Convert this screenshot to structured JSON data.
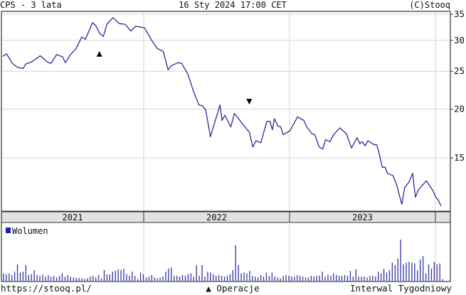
{
  "header": {
    "title": "CPS - 3 lata",
    "timestamp": "16 Sty 2024 17:00 CET",
    "copyright": "(C)Stooq"
  },
  "footer": {
    "url": "https://stooq.pl/",
    "operations_label": "▲ Operacje",
    "interval": "Interwal Tygodniowy"
  },
  "colors": {
    "price_line": "#2b2b96",
    "volume": "#3434a8",
    "grid": "#d6d6d6",
    "band": "#e2e2e2",
    "frame": "#333333"
  },
  "chart_data": [
    {
      "type": "line",
      "title": "CPS - 3 lata",
      "y_scale": "log",
      "ylim": [
        11,
        35.6
      ],
      "y_ticks": [
        15,
        20,
        25,
        30,
        35
      ],
      "x_range": [
        "2021-01-08",
        "2024-01-16"
      ],
      "x_tick_labels": [
        "2021",
        "2022",
        "2023"
      ],
      "grid": true,
      "series": [
        {
          "points": [
            [
              "2021-01-13",
              27.3
            ],
            [
              "2021-01-23",
              27.7
            ],
            [
              "2021-02-06",
              26.2
            ],
            [
              "2021-02-19",
              25.6
            ],
            [
              "2021-03-05",
              25.4
            ],
            [
              "2021-03-12",
              26.1
            ],
            [
              "2021-03-26",
              26.4
            ],
            [
              "2021-04-17",
              27.4
            ],
            [
              "2021-05-05",
              26.4
            ],
            [
              "2021-05-14",
              26.2
            ],
            [
              "2021-05-28",
              27.6
            ],
            [
              "2021-06-12",
              27.2
            ],
            [
              "2021-06-19",
              26.3
            ],
            [
              "2021-07-02",
              27.6
            ],
            [
              "2021-07-16",
              28.6
            ],
            [
              "2021-07-30",
              30.6
            ],
            [
              "2021-08-08",
              30.2
            ],
            [
              "2021-08-26",
              33.3
            ],
            [
              "2021-09-04",
              32.6
            ],
            [
              "2021-09-12",
              31.3
            ],
            [
              "2021-09-22",
              30.7
            ],
            [
              "2021-10-01",
              33.0
            ],
            [
              "2021-10-16",
              34.3
            ],
            [
              "2021-11-01",
              33.1
            ],
            [
              "2021-11-15",
              33.0
            ],
            [
              "2021-11-30",
              31.7
            ],
            [
              "2021-12-12",
              32.6
            ],
            [
              "2022-01-03",
              32.3
            ],
            [
              "2022-01-21",
              30.0
            ],
            [
              "2022-02-04",
              28.6
            ],
            [
              "2022-02-19",
              28.1
            ],
            [
              "2022-03-03",
              25.2
            ],
            [
              "2022-03-10",
              25.8
            ],
            [
              "2022-03-28",
              26.3
            ],
            [
              "2022-04-06",
              26.2
            ],
            [
              "2022-04-22",
              24.5
            ],
            [
              "2022-05-05",
              22.3
            ],
            [
              "2022-05-19",
              20.5
            ],
            [
              "2022-05-28",
              20.4
            ],
            [
              "2022-06-05",
              19.9
            ],
            [
              "2022-06-17",
              17.0
            ],
            [
              "2022-07-11",
              20.5
            ],
            [
              "2022-07-16",
              18.7
            ],
            [
              "2022-07-23",
              19.3
            ],
            [
              "2022-08-07",
              18.0
            ],
            [
              "2022-08-16",
              19.5
            ],
            [
              "2022-08-28",
              18.8
            ],
            [
              "2022-09-17",
              17.7
            ],
            [
              "2022-09-22",
              17.5
            ],
            [
              "2022-10-01",
              16.0
            ],
            [
              "2022-10-09",
              16.6
            ],
            [
              "2022-10-21",
              16.4
            ],
            [
              "2022-11-05",
              18.6
            ],
            [
              "2022-11-13",
              18.6
            ],
            [
              "2022-11-19",
              17.7
            ],
            [
              "2022-11-24",
              18.9
            ],
            [
              "2022-12-03",
              18.1
            ],
            [
              "2022-12-10",
              18.0
            ],
            [
              "2022-12-16",
              17.2
            ],
            [
              "2023-01-02",
              17.6
            ],
            [
              "2023-01-21",
              19.1
            ],
            [
              "2023-02-06",
              18.7
            ],
            [
              "2023-02-13",
              18.0
            ],
            [
              "2023-02-26",
              17.3
            ],
            [
              "2023-03-05",
              17.2
            ],
            [
              "2023-03-16",
              16.0
            ],
            [
              "2023-03-25",
              15.8
            ],
            [
              "2023-04-01",
              16.7
            ],
            [
              "2023-04-12",
              16.5
            ],
            [
              "2023-04-21",
              17.2
            ],
            [
              "2023-05-07",
              17.9
            ],
            [
              "2023-05-23",
              17.3
            ],
            [
              "2023-06-05",
              15.9
            ],
            [
              "2023-06-19",
              16.9
            ],
            [
              "2023-06-26",
              16.3
            ],
            [
              "2023-07-02",
              16.5
            ],
            [
              "2023-07-09",
              16.1
            ],
            [
              "2023-07-16",
              16.6
            ],
            [
              "2023-08-01",
              16.2
            ],
            [
              "2023-08-07",
              16.2
            ],
            [
              "2023-08-12",
              15.6
            ],
            [
              "2023-08-21",
              14.2
            ],
            [
              "2023-08-28",
              14.2
            ],
            [
              "2023-09-03",
              13.7
            ],
            [
              "2023-09-17",
              13.5
            ],
            [
              "2023-09-26",
              12.8
            ],
            [
              "2023-10-03",
              12.0
            ],
            [
              "2023-10-09",
              11.4
            ],
            [
              "2023-10-16",
              12.6
            ],
            [
              "2023-10-27",
              13.0
            ],
            [
              "2023-11-05",
              13.7
            ],
            [
              "2023-11-12",
              11.9
            ],
            [
              "2023-11-19",
              12.4
            ],
            [
              "2023-12-09",
              13.1
            ],
            [
              "2023-12-25",
              12.4
            ],
            [
              "2024-01-02",
              11.9
            ],
            [
              "2024-01-08",
              11.7
            ],
            [
              "2024-01-15",
              11.3
            ]
          ]
        }
      ],
      "operations": [
        {
          "type": "buy",
          "symbol": "▲",
          "date": "2021-09-12",
          "level": 27.7
        },
        {
          "type": "sell",
          "symbol": "▼",
          "date": "2022-09-22",
          "level": 20.9
        }
      ]
    },
    {
      "type": "bar",
      "legend": "Wolumen",
      "legend_placement": "top-left",
      "y_units": "relative (max = 100)",
      "start_date": "2021-01-15",
      "interval": "weekly",
      "values": [
        18,
        16,
        18,
        14,
        22,
        40,
        20,
        22,
        38,
        14,
        16,
        26,
        14,
        12,
        15,
        10,
        14,
        10,
        12,
        8,
        12,
        18,
        10,
        14,
        10,
        8,
        7,
        7,
        6,
        5,
        6,
        10,
        12,
        8,
        14,
        6,
        26,
        16,
        15,
        22,
        24,
        28,
        26,
        29,
        16,
        12,
        22,
        12,
        4,
        20,
        16,
        8,
        10,
        14,
        8,
        6,
        8,
        10,
        22,
        30,
        32,
        12,
        12,
        10,
        14,
        12,
        16,
        18,
        10,
        38,
        12,
        38,
        10,
        22,
        20,
        16,
        12,
        14,
        12,
        10,
        12,
        16,
        26,
        86,
        38,
        18,
        20,
        18,
        24,
        12,
        10,
        8,
        14,
        10,
        20,
        12,
        20,
        10,
        8,
        6,
        12,
        14,
        12,
        10,
        10,
        14,
        12,
        10,
        8,
        8,
        12,
        10,
        12,
        12,
        22,
        10,
        15,
        12,
        18,
        14,
        12,
        12,
        14,
        12,
        24,
        10,
        28,
        10,
        10,
        10,
        8,
        12,
        12,
        10,
        22,
        18,
        29,
        20,
        26,
        44,
        38,
        54,
        100,
        40,
        44,
        46,
        44,
        42,
        25,
        52,
        60,
        18,
        40,
        30,
        46,
        40,
        42,
        4
      ]
    }
  ]
}
